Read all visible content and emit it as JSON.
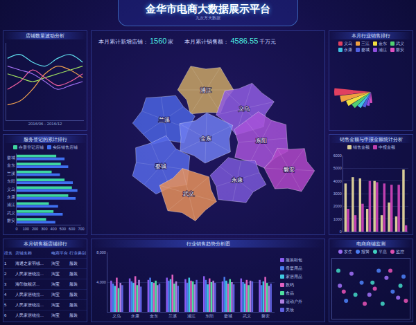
{
  "header": {
    "title": "金华市电商大数据展示平台",
    "logo": "九次方大数据"
  },
  "stats": [
    {
      "label": "本月累计新增店铺：",
      "value": 1560,
      "unit": "家"
    },
    {
      "label": "本月累计销售额：",
      "value": 4586.55,
      "unit": "千万元"
    }
  ],
  "map": {
    "regions": [
      "浦江",
      "兰溪",
      "义乌",
      "婺城",
      "金东",
      "东阳",
      "武义",
      "永康",
      "磐安"
    ]
  },
  "table": {
    "title": "本月销售额店铺排行",
    "columns": [
      "排名",
      "店铺名称",
      "电商平台",
      "行业类别"
    ],
    "rows": [
      [
        1,
        "海通之家羽绒...",
        "淘宝",
        "服装"
      ],
      [
        2,
        "人民家居绕拉...",
        "淘宝",
        "服装"
      ],
      [
        3,
        "海印旗舰店...",
        "淘宝",
        "服装"
      ],
      [
        4,
        "人民家居绕拉...",
        "淘宝",
        "服装"
      ],
      [
        5,
        "人民家居绕拉...",
        "淘宝",
        "服装"
      ],
      [
        6,
        "人民家居绕拉...",
        "淘宝",
        "服装"
      ]
    ]
  },
  "chart_data": [
    {
      "type": "line",
      "title": "店铺数量波动分析",
      "xlabel": "2016/06 - 2016/12",
      "categories": [
        null,
        null,
        null,
        null,
        null,
        null,
        null
      ],
      "series": [
        {
          "color": "#f0a050",
          "values": [
            20,
            25,
            40,
            60,
            70,
            65,
            55
          ]
        },
        {
          "color": "#60e0f0",
          "values": [
            80,
            85,
            75,
            70,
            80,
            85,
            75
          ]
        },
        {
          "color": "#a0e060",
          "values": [
            60,
            55,
            50,
            55,
            60,
            65,
            70
          ]
        },
        {
          "color": "#f060a0",
          "values": [
            40,
            50,
            65,
            55,
            45,
            50,
            60
          ]
        },
        {
          "color": "#a070f0",
          "values": [
            70,
            65,
            60,
            50,
            40,
            45,
            50
          ]
        }
      ],
      "ylim": [
        0,
        100
      ],
      "grid": false,
      "tick_labels": false,
      "line_style": "smooth"
    },
    {
      "type": "bar",
      "title": "服务登记的累计排行",
      "orientation": "horizontal",
      "categories": [
        "婺城",
        "金东",
        "兰溪",
        "东阳",
        "义乌",
        "永康",
        "浦江",
        "武义",
        "磐安"
      ],
      "series": [
        {
          "name": "在册登记店铺",
          "color": "#3ed6a0",
          "values": [
            430,
            480,
            380,
            520,
            600,
            560,
            350,
            400,
            320
          ]
        },
        {
          "name": "实际销售店铺",
          "color": "#3f6ff0",
          "values": [
            520,
            560,
            470,
            610,
            660,
            640,
            450,
            500,
            420
          ]
        }
      ],
      "xlim": [
        0,
        700
      ],
      "xticks": [
        0,
        100,
        200,
        300,
        400,
        500,
        600,
        700
      ],
      "legend": "top",
      "grid": false
    },
    {
      "type": "bar",
      "title": "行业销售趋势分析图",
      "categories": [
        "义乌",
        "永康",
        "金东",
        "兰溪",
        "浦江",
        "东阳",
        "婺城",
        "武义",
        "磐安"
      ],
      "series": [
        {
          "name": "服装鞋包",
          "color": "#8a5cf0",
          "values": [
            4200,
            4500,
            4300,
            4600,
            4400,
            4800,
            4100,
            4500,
            4300
          ]
        },
        {
          "name": "母婴用品",
          "color": "#4a7cf0",
          "values": [
            3800,
            4100,
            4600,
            4200,
            3900,
            4300,
            4700,
            4000,
            3600
          ]
        },
        {
          "name": "家居用品",
          "color": "#40c8e0",
          "values": [
            3500,
            3900,
            4000,
            4400,
            4600,
            3700,
            4200,
            3800,
            4100
          ]
        },
        {
          "name": "数码",
          "color": "#e060c0",
          "values": [
            4600,
            4800,
            3900,
            5000,
            4200,
            4500,
            3800,
            4300,
            4700
          ]
        },
        {
          "name": "食品",
          "color": "#50e0a0",
          "values": [
            3200,
            3600,
            4200,
            3800,
            4100,
            4000,
            4400,
            3600,
            3900
          ]
        },
        {
          "name": "运动户外",
          "color": "#b080e0",
          "values": [
            3900,
            4300,
            3600,
            4100,
            3700,
            4200,
            4000,
            4200,
            3500
          ]
        },
        {
          "name": "美妆",
          "color": "#6060e0",
          "values": [
            3600,
            3400,
            3800,
            3500,
            4300,
            3900,
            3700,
            4100,
            3800
          ]
        }
      ],
      "ylim": [
        0,
        8000
      ],
      "yticks": [
        {
          "value": 4000,
          "label": "4,000"
        },
        {
          "value": 8000,
          "label": "8,000"
        }
      ],
      "legend": "right",
      "grid": true
    },
    {
      "type": "rose",
      "title": "本月行业销售排行",
      "categories": [
        "义乌",
        "三江",
        "金东",
        "武义",
        "永康",
        "婺城",
        "浦江",
        "磐安"
      ],
      "values": [
        100,
        85,
        72,
        62,
        52,
        45,
        38,
        30
      ],
      "colors": [
        "#e04060",
        "#f0a040",
        "#f0e040",
        "#50d070",
        "#40c0e0",
        "#5060e0",
        "#9050e0",
        "#e050c0"
      ],
      "ylim": [
        0,
        100
      ],
      "legend": "top",
      "tick_labels": false
    },
    {
      "type": "bar",
      "title": "销售金额与申报金额统计分析",
      "categories": [
        null,
        null,
        null,
        null,
        null,
        null,
        null,
        null,
        null
      ],
      "series": [
        {
          "name": "销售金额",
          "color": "#d8cc98",
          "values": [
            3800,
            4300,
            4200,
            1800,
            4000,
            1300,
            2300,
            1200,
            4900
          ]
        },
        {
          "name": "申报金额",
          "color": "#c040b0",
          "values": [
            1800,
            1300,
            2200,
            4000,
            3900,
            3800,
            3700,
            3700,
            500
          ]
        }
      ],
      "ylim": [
        0,
        6000
      ],
      "yticks": [
        0,
        1000,
        2000,
        3000,
        4000,
        5000,
        6000
      ],
      "legend": "top",
      "grid": true,
      "tick_labels": "y"
    },
    {
      "type": "scatter",
      "title": "电商商铺监测",
      "series": [
        {
          "name": "发生",
          "color": "#9a6cf0",
          "x": [
            10,
            25,
            48,
            70,
            85
          ],
          "values": [
            55,
            75,
            40,
            68,
            35
          ]
        },
        {
          "name": "报警",
          "color": "#4a7cf0",
          "x": [
            18,
            38,
            60,
            78,
            92
          ],
          "values": [
            30,
            60,
            80,
            45,
            70
          ]
        },
        {
          "name": "平息",
          "color": "#40d0c0",
          "x": [
            8,
            30,
            52,
            65,
            88
          ],
          "values": [
            80,
            40,
            60,
            25,
            55
          ]
        },
        {
          "name": "监控",
          "color": "#e050b0",
          "x": [
            15,
            42,
            55,
            75,
            95
          ],
          "values": [
            45,
            25,
            50,
            80,
            30
          ]
        }
      ],
      "xlim": [
        0,
        100
      ],
      "ylim": [
        0,
        100
      ],
      "legend": "top",
      "marker": "circle",
      "tick_labels": false,
      "grid": false
    }
  ]
}
